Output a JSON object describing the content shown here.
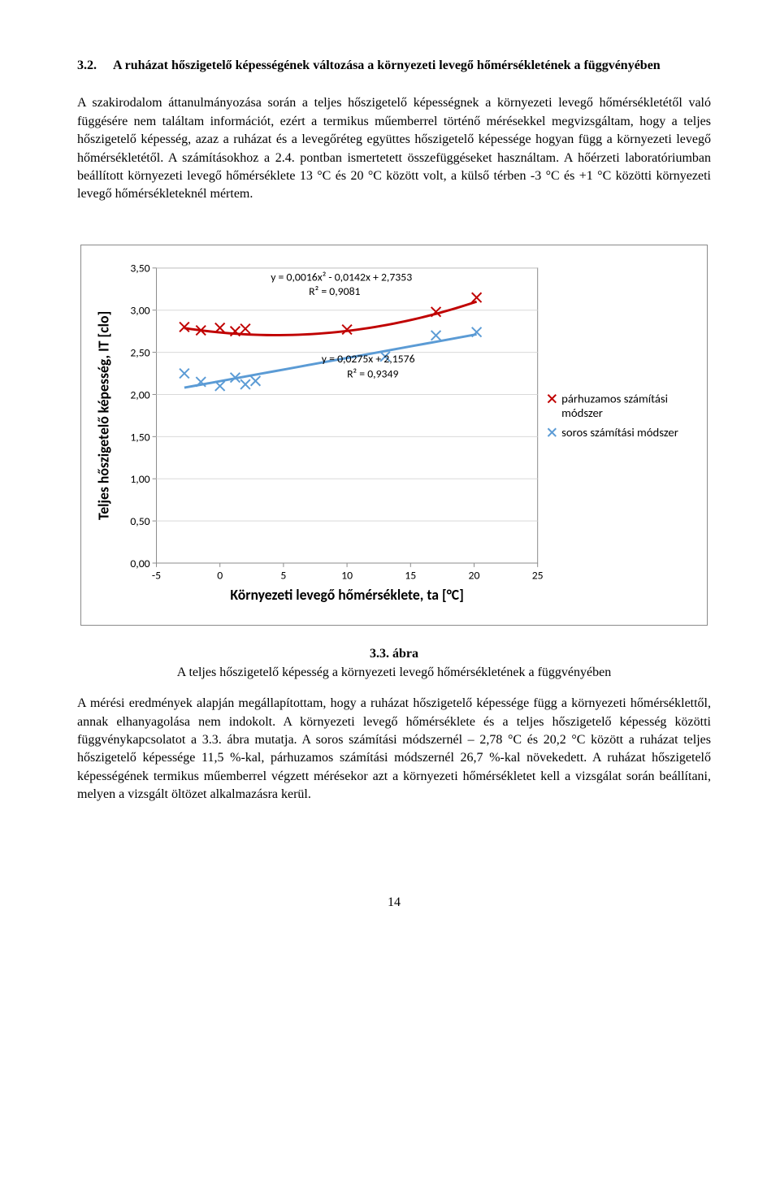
{
  "heading": {
    "number": "3.2.",
    "title": "A ruházat hőszigetelő képességének változása a környezeti levegő hőmérsékletének a függvényében"
  },
  "para1": "A szakirodalom áttanulmányozása során a teljes hőszigetelő képességnek a környezeti levegő hőmérsékletétől való függésére nem találtam információt, ezért a termikus műemberrel történő mérésekkel megvizsgáltam, hogy a teljes hőszigetelő képesség, azaz a ruházat és a levegőréteg együttes hőszigetelő képessége hogyan függ a környezeti levegő hőmérsékletétől. A számításokhoz a 2.4. pontban ismertetett összefüggéseket használtam. A hőérzeti laboratóriumban beállított környezeti levegő hőmérséklete 13 °C és 20 °C között volt, a külső térben -3 °C és +1 °C közötti környezeti levegő hőmérsékleteknél mértem.",
  "figure": {
    "number": "3.3. ábra",
    "caption": "A teljes hőszigetelő képesség a környezeti levegő hőmérsékletének a függvényében"
  },
  "para2": "A mérési eredmények alapján megállapítottam, hogy a ruházat hőszigetelő képessége függ a környezeti hőmérséklettől, annak elhanyagolása nem indokolt. A környezeti levegő hőmérséklete és a teljes hőszigetelő képesség közötti függvénykapcsolatot a 3.3. ábra mutatja. A soros számítási módszernél – 2,78 °C és 20,2 °C között a ruházat teljes hőszigetelő képessége 11,5 %-kal, párhuzamos számítási módszernél 26,7 %-kal növekedett. A ruházat hőszigetelő képességének termikus műemberrel végzett mérésekor azt a környezeti hőmérsékletet kell a vizsgálat során beállítani, melyen a vizsgált öltözet alkalmazásra kerül.",
  "pageNumber": "14",
  "chart": {
    "type": "scatter-with-trendlines",
    "y_label": "Teljes hőszigetelő képesség, IT [clo]",
    "x_label": "Környezeti levegő hőmérséklete, ta [°C]",
    "xlim": [
      -5,
      25
    ],
    "ylim": [
      0.0,
      3.5
    ],
    "x_ticks": [
      "-5",
      "0",
      "5",
      "10",
      "15",
      "20",
      "25"
    ],
    "y_ticks": [
      "0,00",
      "0,50",
      "1,00",
      "1,50",
      "2,00",
      "2,50",
      "3,00",
      "3,50"
    ],
    "grid_color": "#d9d9d9",
    "plot_background": "#ffffff",
    "axis_color": "#8a8a8a",
    "axis_font_size": 14,
    "title_font_size": 18,
    "label_font_size": 14,
    "series": [
      {
        "name": "párhuzamos számítási módszer",
        "data_name": "series-parallel",
        "legend": "párhuzamos számítási módszer",
        "marker": "x",
        "color": "#c00000",
        "marker_size": 6,
        "trend_color": "#c00000",
        "trend_width": 3,
        "eq": "y = 0,0016x² - 0,0142x + 2,7353",
        "r2": "R² = 0,9081",
        "points": [
          {
            "x": -2.8,
            "y": 2.8
          },
          {
            "x": -1.5,
            "y": 2.76
          },
          {
            "x": 0.0,
            "y": 2.79
          },
          {
            "x": 1.2,
            "y": 2.75
          },
          {
            "x": 2.0,
            "y": 2.78
          },
          {
            "x": 10.0,
            "y": 2.77
          },
          {
            "x": 17.0,
            "y": 2.98
          },
          {
            "x": 20.2,
            "y": 3.15
          }
        ]
      },
      {
        "name": "soros számítási módszer",
        "data_name": "series-serial",
        "legend": "soros számítási módszer",
        "marker": "x",
        "color": "#5b9bd5",
        "marker_size": 6,
        "trend_color": "#5b9bd5",
        "trend_width": 3,
        "eq": "y = 0,0275x + 2,1576",
        "r2": "R² = 0,9349",
        "points": [
          {
            "x": -2.8,
            "y": 2.25
          },
          {
            "x": -1.5,
            "y": 2.15
          },
          {
            "x": 0.0,
            "y": 2.1
          },
          {
            "x": 1.2,
            "y": 2.2
          },
          {
            "x": 2.0,
            "y": 2.12
          },
          {
            "x": 2.8,
            "y": 2.16
          },
          {
            "x": 13.0,
            "y": 2.45
          },
          {
            "x": 17.0,
            "y": 2.7
          },
          {
            "x": 20.2,
            "y": 2.74
          }
        ]
      }
    ],
    "legend": {
      "label1": "párhuzamos számítási módszer",
      "label2": "soros számítási módszer"
    }
  }
}
